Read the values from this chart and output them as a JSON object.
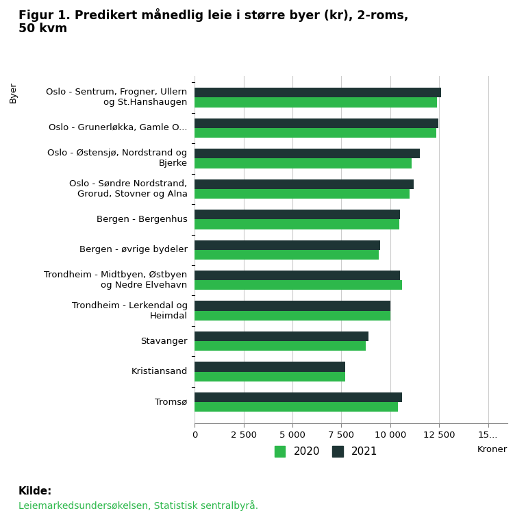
{
  "title_line1": "Figur 1. Predikert månedlig leie i større byer (kr), 2-roms,",
  "title_line2": "50 kvm",
  "categories": [
    "Oslo - Sentrum, Frogner, Ullern\nog St.Hanshaugen",
    "Oslo - Grunerløkka, Gamle O...",
    "Oslo - Østensjø, Nordstrand og\nBjerke",
    "Oslo - Søndre Nordstrand,\nGrorud, Stovner og Alna",
    "Bergen - Bergenhus",
    "Bergen - øvrige bydeler",
    "Trondheim - Midtbyen, Østbyen\nog Nedre Elvehavn",
    "Trondheim - Lerkendal og\nHeimdal",
    "Stavanger",
    "Kristiansand",
    "Tromsø"
  ],
  "values_2021": [
    12600,
    12450,
    11500,
    11200,
    10500,
    9500,
    10500,
    10000,
    8900,
    7700,
    10600
  ],
  "values_2020": [
    12400,
    12350,
    11100,
    11000,
    10450,
    9400,
    10600,
    10000,
    8750,
    7700,
    10400
  ],
  "color_2021": "#1e3535",
  "color_2020": "#2db84b",
  "xlabel": "Kroner",
  "ylabel": "Byer",
  "xlim_max": 16000,
  "xticks": [
    0,
    2500,
    5000,
    7500,
    10000,
    12500,
    15000
  ],
  "xtick_labels": [
    "0",
    "2 500",
    "5 000",
    "7 500",
    "10 000",
    "12 500",
    "15..."
  ],
  "legend_2020": "2020",
  "legend_2021": "2021",
  "source_label": "Kilde:",
  "source_text": "Leiemarkedsundersøkelsen, Statistisk sentralbyrå.",
  "background_color": "#ffffff",
  "bar_height": 0.32,
  "title_fontsize": 12.5,
  "tick_fontsize": 9.5,
  "source_color": "#2db84b"
}
